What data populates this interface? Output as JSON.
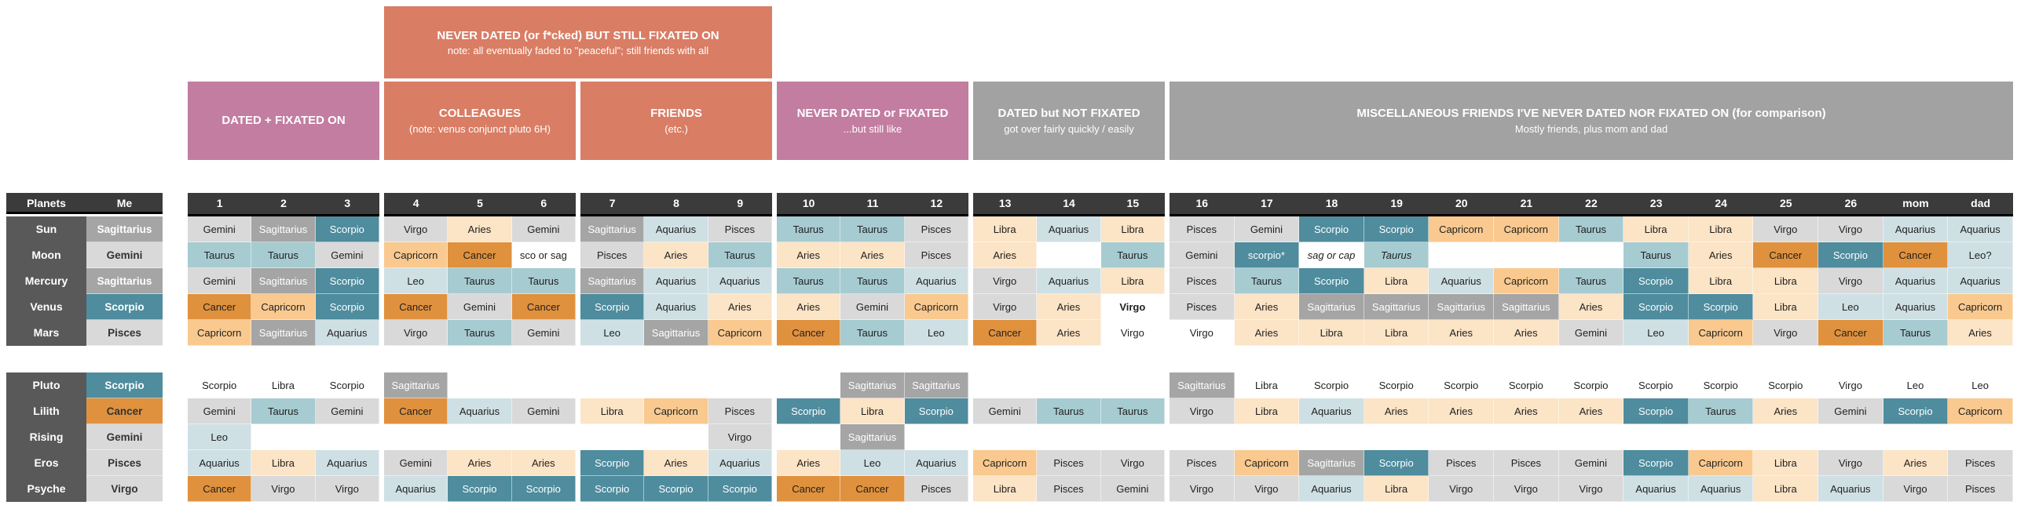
{
  "banner": {
    "title": "NEVER DATED (or f*cked) BUT STILL FIXATED ON",
    "note": "note: all eventually faded to \"peaceful\"; still friends with all"
  },
  "groups": [
    {
      "label": "DATED + FIXATED ON",
      "sublabel": "",
      "style": "mauve",
      "cols": 3
    },
    {
      "label": "COLLEAGUES",
      "sublabel": "(note: venus conjunct pluto 6H)",
      "style": "salmon",
      "cols": 3
    },
    {
      "label": "FRIENDS",
      "sublabel": "(etc.)",
      "style": "salmon",
      "cols": 3
    },
    {
      "label": "NEVER DATED or FIXATED",
      "sublabel": "...but still like",
      "style": "mauve",
      "cols": 3
    },
    {
      "label": "DATED but NOT FIXATED",
      "sublabel": "got over fairly quickly / easily",
      "style": "gray",
      "cols": 3
    },
    {
      "label": "MISCELLANEOUS FRIENDS I'VE NEVER DATED NOR FIXATED ON (for comparison)",
      "sublabel": "Mostly friends, plus mom and dad",
      "style": "gray",
      "cols": 13
    }
  ],
  "table_header": {
    "planets": "Planets",
    "me": "Me",
    "columns": [
      "1",
      "2",
      "3",
      "4",
      "5",
      "6",
      "7",
      "8",
      "9",
      "10",
      "11",
      "12",
      "13",
      "14",
      "15",
      "16",
      "17",
      "18",
      "19",
      "20",
      "21",
      "22",
      "23",
      "24",
      "25",
      "26",
      "mom",
      "dad"
    ]
  },
  "palette": {
    "header_dark": "#3b3b3b",
    "label_col": "#595959",
    "mauve": "#c27da1",
    "salmon": "#d97d64",
    "gray_header": "#a2a2a2",
    "sag": "#a5a5a5",
    "sco": "#4e8c9e",
    "tau": "#a6cbd1",
    "pale": "#cfe0e5",
    "gray": "#d9d9d9",
    "can": "#e0913d",
    "cap": "#f9c98f",
    "ari": "#fce4c6",
    "w": "transparent"
  },
  "block1": [
    {
      "planet": "Sun",
      "me": [
        "Sagittarius",
        "sag"
      ],
      "cells": [
        [
          "Gemini",
          "gray"
        ],
        [
          "Sagittarius",
          "sag"
        ],
        [
          "Scorpio",
          "sco"
        ],
        [
          "Virgo",
          "gray"
        ],
        [
          "Aries",
          "ari"
        ],
        [
          "Gemini",
          "gray"
        ],
        [
          "Sagittarius",
          "sag"
        ],
        [
          "Aquarius",
          "pale"
        ],
        [
          "Pisces",
          "gray"
        ],
        [
          "Taurus",
          "tau"
        ],
        [
          "Taurus",
          "tau"
        ],
        [
          "Pisces",
          "gray"
        ],
        [
          "Libra",
          "ari"
        ],
        [
          "Aquarius",
          "pale"
        ],
        [
          "Libra",
          "ari"
        ],
        [
          "Pisces",
          "gray"
        ],
        [
          "Gemini",
          "gray"
        ],
        [
          "Scorpio",
          "sco"
        ],
        [
          "Scorpio",
          "sco"
        ],
        [
          "Capricorn",
          "cap"
        ],
        [
          "Capricorn",
          "cap"
        ],
        [
          "Taurus",
          "tau"
        ],
        [
          "Libra",
          "ari"
        ],
        [
          "Libra",
          "ari"
        ],
        [
          "Virgo",
          "gray"
        ],
        [
          "Virgo",
          "gray"
        ],
        [
          "Aquarius",
          "pale"
        ],
        [
          "Aquarius",
          "pale"
        ]
      ]
    },
    {
      "planet": "Moon",
      "me": [
        "Gemini",
        "gray"
      ],
      "cells": [
        [
          "Taurus",
          "tau"
        ],
        [
          "Taurus",
          "tau"
        ],
        [
          "Gemini",
          "gray"
        ],
        [
          "Capricorn",
          "cap"
        ],
        [
          "Cancer",
          "can"
        ],
        [
          "sco or sag",
          "w"
        ],
        [
          "Pisces",
          "gray"
        ],
        [
          "Aries",
          "ari"
        ],
        [
          "Taurus",
          "tau"
        ],
        [
          "Aries",
          "ari"
        ],
        [
          "Aries",
          "ari"
        ],
        [
          "Pisces",
          "gray"
        ],
        [
          "Aries",
          "ari"
        ],
        [
          "",
          "w"
        ],
        [
          "Taurus",
          "tau"
        ],
        [
          "Gemini",
          "gray"
        ],
        [
          "scorpio*",
          "sco"
        ],
        [
          "sag or cap",
          "w",
          "i"
        ],
        [
          "Taurus",
          "tau",
          "i"
        ],
        [
          "",
          "w"
        ],
        [
          "",
          "w"
        ],
        [
          "",
          "w"
        ],
        [
          "Taurus",
          "tau"
        ],
        [
          "Aries",
          "ari"
        ],
        [
          "Cancer",
          "can"
        ],
        [
          "Scorpio",
          "sco"
        ],
        [
          "Cancer",
          "can"
        ],
        [
          "Leo?",
          "pale"
        ]
      ]
    },
    {
      "planet": "Mercury",
      "me": [
        "Sagittarius",
        "sag"
      ],
      "cells": [
        [
          "Gemini",
          "gray"
        ],
        [
          "Sagittarius",
          "sag"
        ],
        [
          "Scorpio",
          "sco"
        ],
        [
          "Leo",
          "pale"
        ],
        [
          "Taurus",
          "tau"
        ],
        [
          "Taurus",
          "tau"
        ],
        [
          "Sagittarius",
          "sag"
        ],
        [
          "Aquarius",
          "pale"
        ],
        [
          "Aquarius",
          "pale"
        ],
        [
          "Taurus",
          "tau"
        ],
        [
          "Taurus",
          "tau"
        ],
        [
          "Aquarius",
          "pale"
        ],
        [
          "Virgo",
          "gray"
        ],
        [
          "Aquarius",
          "pale"
        ],
        [
          "Libra",
          "ari"
        ],
        [
          "Pisces",
          "gray"
        ],
        [
          "Taurus",
          "tau"
        ],
        [
          "Scorpio",
          "sco"
        ],
        [
          "Libra",
          "ari"
        ],
        [
          "Aquarius",
          "pale"
        ],
        [
          "Capricorn",
          "cap"
        ],
        [
          "Taurus",
          "tau"
        ],
        [
          "Scorpio",
          "sco"
        ],
        [
          "Libra",
          "ari"
        ],
        [
          "Libra",
          "ari"
        ],
        [
          "Virgo",
          "gray"
        ],
        [
          "Aquarius",
          "pale"
        ],
        [
          "Aquarius",
          "pale"
        ]
      ]
    },
    {
      "planet": "Venus",
      "me": [
        "Scorpio",
        "sco"
      ],
      "cells": [
        [
          "Cancer",
          "can"
        ],
        [
          "Capricorn",
          "cap"
        ],
        [
          "Scorpio",
          "sco"
        ],
        [
          "Cancer",
          "can"
        ],
        [
          "Gemini",
          "gray"
        ],
        [
          "Cancer",
          "can"
        ],
        [
          "Scorpio",
          "sco"
        ],
        [
          "Aquarius",
          "pale"
        ],
        [
          "Aries",
          "ari"
        ],
        [
          "Aries",
          "ari"
        ],
        [
          "Gemini",
          "gray"
        ],
        [
          "Capricorn",
          "cap"
        ],
        [
          "Virgo",
          "gray"
        ],
        [
          "Aries",
          "ari"
        ],
        [
          "Virgo",
          "w",
          "b"
        ],
        [
          "Pisces",
          "gray"
        ],
        [
          "Aries",
          "ari"
        ],
        [
          "Sagittarius",
          "sag"
        ],
        [
          "Sagittarius",
          "sag"
        ],
        [
          "Sagittarius",
          "sag"
        ],
        [
          "Sagittarius",
          "sag"
        ],
        [
          "Aries",
          "ari"
        ],
        [
          "Scorpio",
          "sco"
        ],
        [
          "Scorpio",
          "sco"
        ],
        [
          "Libra",
          "ari"
        ],
        [
          "Leo",
          "pale"
        ],
        [
          "Aquarius",
          "pale"
        ],
        [
          "Capricorn",
          "cap"
        ]
      ]
    },
    {
      "planet": "Mars",
      "me": [
        "Pisces",
        "gray"
      ],
      "cells": [
        [
          "Capricorn",
          "cap"
        ],
        [
          "Sagittarius",
          "sag"
        ],
        [
          "Aquarius",
          "pale"
        ],
        [
          "Virgo",
          "gray"
        ],
        [
          "Taurus",
          "tau"
        ],
        [
          "Gemini",
          "gray"
        ],
        [
          "Leo",
          "pale"
        ],
        [
          "Sagittarius",
          "sag"
        ],
        [
          "Capricorn",
          "cap"
        ],
        [
          "Cancer",
          "can"
        ],
        [
          "Taurus",
          "tau"
        ],
        [
          "Leo",
          "pale"
        ],
        [
          "Cancer",
          "can"
        ],
        [
          "Aries",
          "ari"
        ],
        [
          "Virgo",
          "w"
        ],
        [
          "Virgo",
          "w"
        ],
        [
          "Aries",
          "ari"
        ],
        [
          "Libra",
          "ari"
        ],
        [
          "Libra",
          "ari"
        ],
        [
          "Aries",
          "ari"
        ],
        [
          "Aries",
          "ari"
        ],
        [
          "Gemini",
          "gray"
        ],
        [
          "Leo",
          "pale"
        ],
        [
          "Capricorn",
          "cap"
        ],
        [
          "Virgo",
          "gray"
        ],
        [
          "Cancer",
          "can"
        ],
        [
          "Taurus",
          "tau"
        ],
        [
          "Aries",
          "ari"
        ]
      ]
    }
  ],
  "block2": [
    {
      "planet": "Pluto",
      "me": [
        "Scorpio",
        "sco"
      ],
      "cells": [
        [
          "Scorpio",
          "w"
        ],
        [
          "Libra",
          "w"
        ],
        [
          "Scorpio",
          "w"
        ],
        [
          "Sagittarius",
          "sag"
        ],
        [
          "",
          "w"
        ],
        [
          "",
          "w"
        ],
        [
          "",
          "w"
        ],
        [
          "",
          "w"
        ],
        [
          "",
          "w"
        ],
        [
          "",
          "w"
        ],
        [
          "Sagittarius",
          "sag"
        ],
        [
          "Sagittarius",
          "sag"
        ],
        [
          "",
          "w"
        ],
        [
          "",
          "w"
        ],
        [
          "",
          "w"
        ],
        [
          "Sagittarius",
          "sag"
        ],
        [
          "Libra",
          "w"
        ],
        [
          "Scorpio",
          "w"
        ],
        [
          "Scorpio",
          "w"
        ],
        [
          "Scorpio",
          "w"
        ],
        [
          "Scorpio",
          "w"
        ],
        [
          "Scorpio",
          "w"
        ],
        [
          "Scorpio",
          "w"
        ],
        [
          "Scorpio",
          "w"
        ],
        [
          "Scorpio",
          "w"
        ],
        [
          "Virgo",
          "w"
        ],
        [
          "Leo",
          "w"
        ],
        [
          "Leo",
          "w"
        ]
      ]
    },
    {
      "planet": "Lilith",
      "me": [
        "Cancer",
        "can"
      ],
      "cells": [
        [
          "Gemini",
          "gray"
        ],
        [
          "Taurus",
          "tau"
        ],
        [
          "Gemini",
          "gray"
        ],
        [
          "Cancer",
          "can"
        ],
        [
          "Aquarius",
          "pale"
        ],
        [
          "Gemini",
          "gray"
        ],
        [
          "Libra",
          "ari"
        ],
        [
          "Capricorn",
          "cap"
        ],
        [
          "Pisces",
          "gray"
        ],
        [
          "Scorpio",
          "sco"
        ],
        [
          "Libra",
          "ari"
        ],
        [
          "Scorpio",
          "sco"
        ],
        [
          "Gemini",
          "gray"
        ],
        [
          "Taurus",
          "tau"
        ],
        [
          "Taurus",
          "tau"
        ],
        [
          "Virgo",
          "gray"
        ],
        [
          "Libra",
          "ari"
        ],
        [
          "Aquarius",
          "pale"
        ],
        [
          "Aries",
          "ari"
        ],
        [
          "Aries",
          "ari"
        ],
        [
          "Aries",
          "ari"
        ],
        [
          "Aries",
          "ari"
        ],
        [
          "Scorpio",
          "sco"
        ],
        [
          "Taurus",
          "tau"
        ],
        [
          "Aries",
          "ari"
        ],
        [
          "Gemini",
          "gray"
        ],
        [
          "Scorpio",
          "sco"
        ],
        [
          "Capricorn",
          "cap"
        ]
      ]
    },
    {
      "planet": "Rising",
      "me": [
        "Gemini",
        "gray"
      ],
      "cells": [
        [
          "Leo",
          "pale"
        ],
        [
          "",
          "w"
        ],
        [
          "",
          "w"
        ],
        [
          "",
          "w"
        ],
        [
          "",
          "w"
        ],
        [
          "",
          "w"
        ],
        [
          "",
          "w"
        ],
        [
          "",
          "w"
        ],
        [
          "Virgo",
          "gray"
        ],
        [
          "",
          "w"
        ],
        [
          "Sagittarius",
          "sag"
        ],
        [
          "",
          "w"
        ],
        [
          "",
          "w"
        ],
        [
          "",
          "w"
        ],
        [
          "",
          "w"
        ],
        [
          "",
          "w"
        ],
        [
          "",
          "w"
        ],
        [
          "",
          "w"
        ],
        [
          "",
          "w"
        ],
        [
          "",
          "w"
        ],
        [
          "",
          "w"
        ],
        [
          "",
          "w"
        ],
        [
          "",
          "w"
        ],
        [
          "",
          "w"
        ],
        [
          "",
          "w"
        ],
        [
          "",
          "w"
        ],
        [
          "",
          "w"
        ],
        [
          "",
          "w"
        ]
      ]
    },
    {
      "planet": "Eros",
      "me": [
        "Pisces",
        "gray"
      ],
      "cells": [
        [
          "Aquarius",
          "pale"
        ],
        [
          "Libra",
          "ari"
        ],
        [
          "Aquarius",
          "pale"
        ],
        [
          "Gemini",
          "gray"
        ],
        [
          "Aries",
          "ari"
        ],
        [
          "Aries",
          "ari"
        ],
        [
          "Scorpio",
          "sco"
        ],
        [
          "Aries",
          "ari"
        ],
        [
          "Aquarius",
          "pale"
        ],
        [
          "Aries",
          "ari"
        ],
        [
          "Leo",
          "pale"
        ],
        [
          "Aquarius",
          "pale"
        ],
        [
          "Capricorn",
          "cap"
        ],
        [
          "Pisces",
          "gray"
        ],
        [
          "Virgo",
          "gray"
        ],
        [
          "Pisces",
          "gray"
        ],
        [
          "Capricorn",
          "cap"
        ],
        [
          "Sagittarius",
          "sag"
        ],
        [
          "Scorpio",
          "sco"
        ],
        [
          "Pisces",
          "gray"
        ],
        [
          "Pisces",
          "gray"
        ],
        [
          "Gemini",
          "gray"
        ],
        [
          "Scorpio",
          "sco"
        ],
        [
          "Capricorn",
          "cap"
        ],
        [
          "Libra",
          "ari"
        ],
        [
          "Virgo",
          "gray"
        ],
        [
          "Aries",
          "ari"
        ],
        [
          "Pisces",
          "gray"
        ]
      ]
    },
    {
      "planet": "Psyche",
      "me": [
        "Virgo",
        "gray"
      ],
      "cells": [
        [
          "Cancer",
          "can"
        ],
        [
          "Virgo",
          "gray"
        ],
        [
          "Virgo",
          "gray"
        ],
        [
          "Aquarius",
          "pale"
        ],
        [
          "Scorpio",
          "sco"
        ],
        [
          "Scorpio",
          "sco"
        ],
        [
          "Scorpio",
          "sco"
        ],
        [
          "Scorpio",
          "sco"
        ],
        [
          "Scorpio",
          "sco"
        ],
        [
          "Cancer",
          "can"
        ],
        [
          "Cancer",
          "can"
        ],
        [
          "Pisces",
          "gray"
        ],
        [
          "Libra",
          "ari"
        ],
        [
          "Pisces",
          "gray"
        ],
        [
          "Gemini",
          "gray"
        ],
        [
          "Virgo",
          "gray"
        ],
        [
          "Virgo",
          "gray"
        ],
        [
          "Aquarius",
          "pale"
        ],
        [
          "Libra",
          "ari"
        ],
        [
          "Virgo",
          "gray"
        ],
        [
          "Virgo",
          "gray"
        ],
        [
          "Virgo",
          "gray"
        ],
        [
          "Aquarius",
          "pale"
        ],
        [
          "Aquarius",
          "pale"
        ],
        [
          "Libra",
          "ari"
        ],
        [
          "Aquarius",
          "pale"
        ],
        [
          "Virgo",
          "gray"
        ],
        [
          "Pisces",
          "gray"
        ]
      ]
    }
  ]
}
